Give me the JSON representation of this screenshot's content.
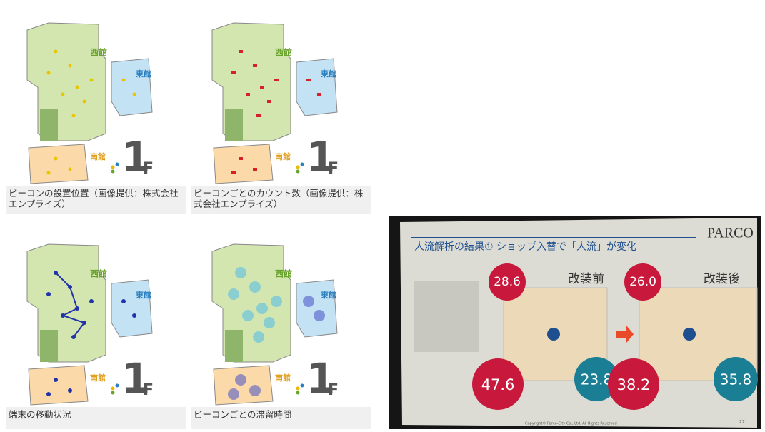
{
  "panels": [
    {
      "labels": {
        "west": "西館",
        "east": "東館",
        "south": "南館"
      },
      "floor": {
        "number": "1",
        "unit": "F"
      },
      "caption": "ビーコンの設置位置（画像提供：株式会社エンプライズ）"
    },
    {
      "labels": {
        "west": "西館",
        "east": "東館",
        "south": "南館"
      },
      "floor": {
        "number": "1",
        "unit": "F"
      },
      "caption": "ビーコンごとのカウント数（画像提供：株式会社エンプライズ）"
    },
    {
      "labels": {
        "west": "西館",
        "east": "東館",
        "south": "南館"
      },
      "floor": {
        "number": "1",
        "unit": "F"
      },
      "caption": "端末の移動状況"
    },
    {
      "labels": {
        "west": "西館",
        "east": "東館",
        "south": "南館"
      },
      "floor": {
        "number": "1",
        "unit": "F"
      },
      "caption": "ビーコンごとの滞留時間"
    }
  ],
  "slide": {
    "title": "人流解析の結果① ショップ入替で「人流」が変化",
    "logo": "PARCO",
    "before": {
      "label": "改装前",
      "top": "28.6",
      "left": "47.6",
      "right": "23.8"
    },
    "after": {
      "label": "改装後",
      "top": "26.0",
      "left": "38.2",
      "right": "35.8"
    },
    "footer": "Copyright© Parco-City Co., Ltd. All Rights Reserved",
    "page": "27"
  }
}
